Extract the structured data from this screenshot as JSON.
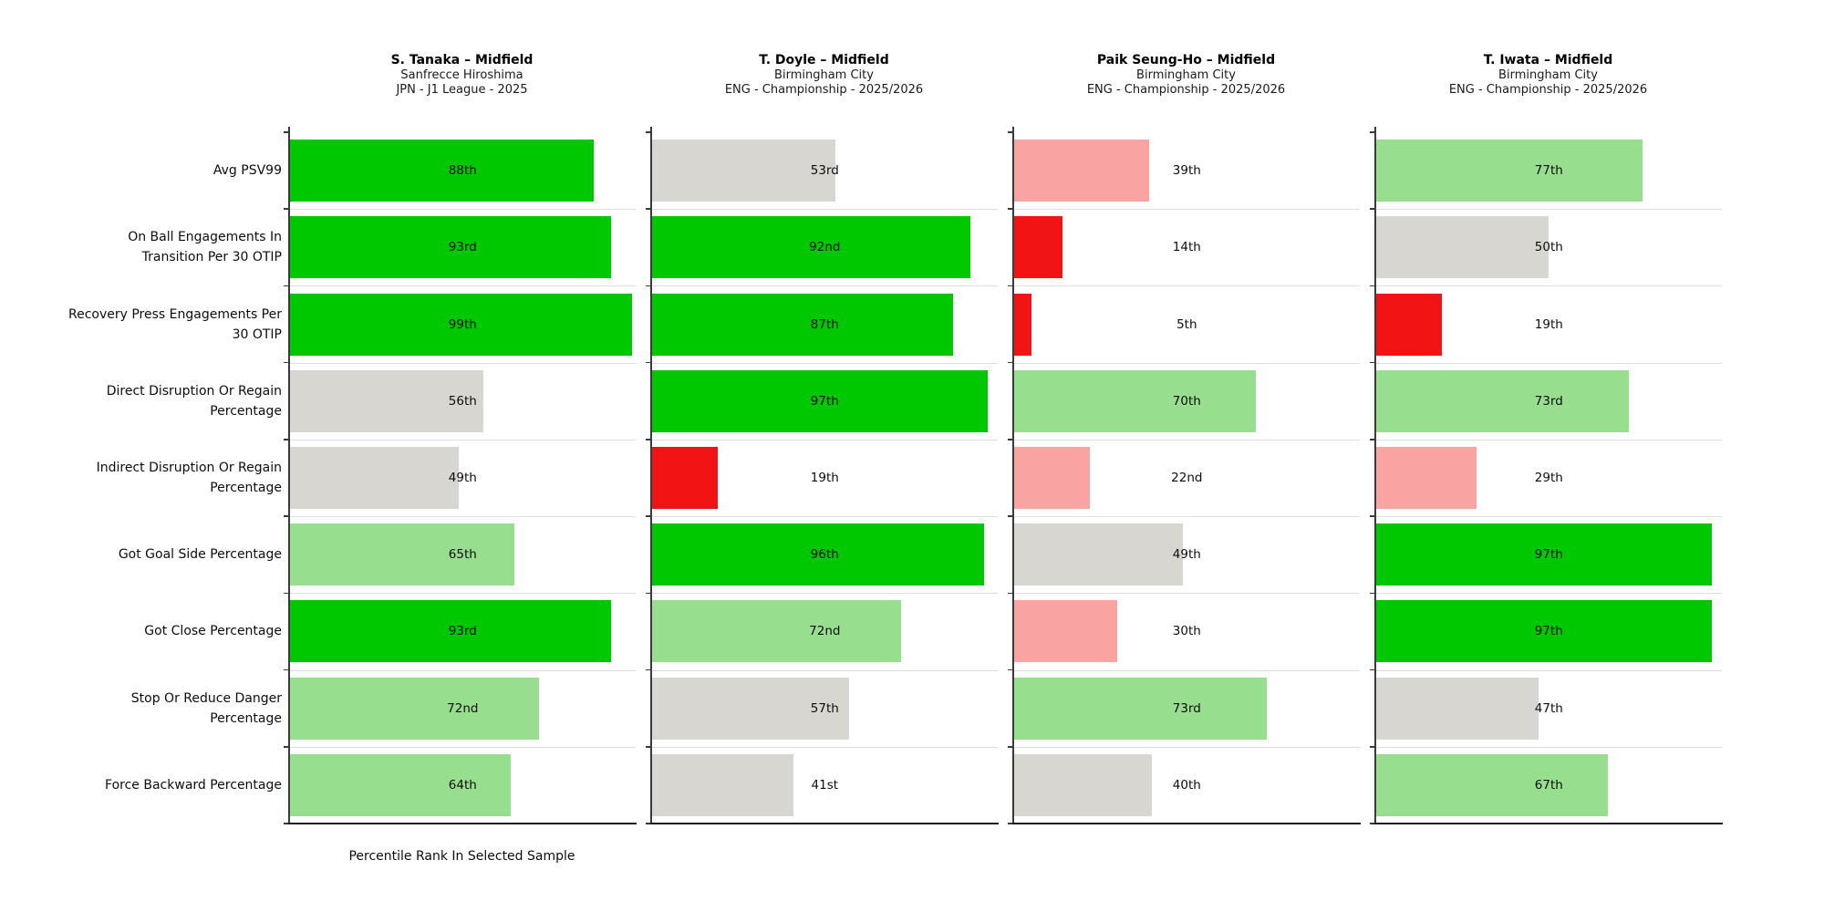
{
  "palette": {
    "excellent": "#00C800",
    "good": "#98DE8F",
    "average": "#D8D6D1",
    "below_average": "#FAA3A3",
    "poor": "#F21414"
  },
  "x_axis_label": "Percentile Rank In Selected Sample",
  "chart_data": {
    "type": "bar",
    "orientation": "horizontal",
    "xlim": [
      0,
      100
    ],
    "grid": "row-separators",
    "x_axis_label": "Percentile Rank In Selected Sample",
    "metrics": [
      "Avg PSV99",
      "On Ball Engagements In Transition Per 30 OTIP",
      "Recovery Press Engagements Per 30 OTIP",
      "Direct Disruption Or Regain Percentage",
      "Indirect Disruption Or Regain Percentage",
      "Got Goal Side Percentage",
      "Got Close Percentage",
      "Stop Or Reduce Danger Percentage",
      "Force Backward Percentage"
    ],
    "metric_label_lines": [
      [
        "Avg PSV99"
      ],
      [
        "On Ball Engagements In",
        "Transition Per 30 OTIP"
      ],
      [
        "Recovery Press Engagements Per",
        "30 OTIP"
      ],
      [
        "Direct Disruption Or Regain",
        "Percentage"
      ],
      [
        "Indirect Disruption Or Regain",
        "Percentage"
      ],
      [
        "Got Goal Side Percentage"
      ],
      [
        "Got Close Percentage"
      ],
      [
        "Stop Or Reduce Danger",
        "Percentage"
      ],
      [
        "Force Backward Percentage"
      ]
    ],
    "players": [
      {
        "name": "S. Tanaka – Midfield",
        "team": "Sanfrecce Hiroshima",
        "league": "JPN - J1 League - 2025",
        "values": [
          88,
          93,
          99,
          56,
          49,
          65,
          93,
          72,
          64
        ],
        "labels": [
          "88th",
          "93rd",
          "99th",
          "56th",
          "49th",
          "65th",
          "93rd",
          "72nd",
          "64th"
        ],
        "colors": [
          "excellent",
          "excellent",
          "excellent",
          "average",
          "average",
          "good",
          "excellent",
          "good",
          "good"
        ]
      },
      {
        "name": "T. Doyle – Midfield",
        "team": "Birmingham City",
        "league": "ENG - Championship - 2025/2026",
        "values": [
          53,
          92,
          87,
          97,
          19,
          96,
          72,
          57,
          41
        ],
        "labels": [
          "53rd",
          "92nd",
          "87th",
          "97th",
          "19th",
          "96th",
          "72nd",
          "57th",
          "41st"
        ],
        "colors": [
          "average",
          "excellent",
          "excellent",
          "excellent",
          "poor",
          "excellent",
          "good",
          "average",
          "average"
        ]
      },
      {
        "name": "Paik Seung-Ho – Midfield",
        "team": "Birmingham City",
        "league": "ENG - Championship - 2025/2026",
        "values": [
          39,
          14,
          5,
          70,
          22,
          49,
          30,
          73,
          40
        ],
        "labels": [
          "39th",
          "14th",
          "5th",
          "70th",
          "22nd",
          "49th",
          "30th",
          "73rd",
          "40th"
        ],
        "colors": [
          "below_average",
          "poor",
          "poor",
          "good",
          "below_average",
          "average",
          "below_average",
          "good",
          "average"
        ]
      },
      {
        "name": "T. Iwata – Midfield",
        "team": "Birmingham City",
        "league": "ENG - Championship - 2025/2026",
        "values": [
          77,
          50,
          19,
          73,
          29,
          97,
          97,
          47,
          67
        ],
        "labels": [
          "77th",
          "50th",
          "19th",
          "73rd",
          "29th",
          "97th",
          "97th",
          "47th",
          "67th"
        ],
        "colors": [
          "good",
          "average",
          "poor",
          "good",
          "below_average",
          "excellent",
          "excellent",
          "average",
          "good"
        ]
      }
    ]
  }
}
